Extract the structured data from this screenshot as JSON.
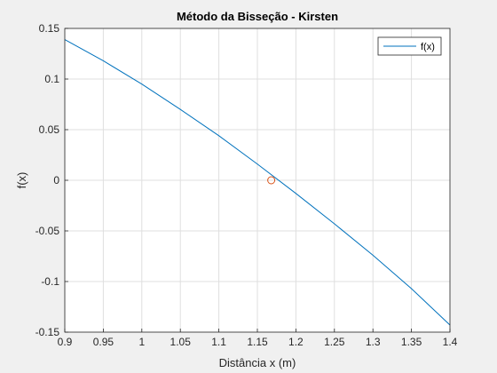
{
  "chart_data": {
    "type": "line",
    "title": "Método da Bisseção - Kirsten",
    "xlabel": "Distância x (m)",
    "ylabel": "f(x)",
    "xlim": [
      0.9,
      1.4
    ],
    "ylim": [
      -0.15,
      0.15
    ],
    "xticks": [
      "0.9",
      "0.95",
      "1",
      "1.05",
      "1.1",
      "1.15",
      "1.2",
      "1.25",
      "1.3",
      "1.35",
      "1.4"
    ],
    "yticks": [
      "-0.15",
      "-0.1",
      "-0.05",
      "0",
      "0.05",
      "0.1",
      "0.15"
    ],
    "grid": true,
    "legend_position": "top-right",
    "series": [
      {
        "name": "f(x)",
        "color": "#0072bd",
        "x": [
          0.9,
          0.95,
          1.0,
          1.05,
          1.1,
          1.15,
          1.2,
          1.25,
          1.3,
          1.35,
          1.4
        ],
        "y": [
          0.139,
          0.118,
          0.095,
          0.07,
          0.044,
          0.016,
          -0.013,
          -0.043,
          -0.074,
          -0.107,
          -0.143
        ]
      }
    ],
    "markers": [
      {
        "x": 1.168,
        "y": 0.0,
        "shape": "circle",
        "color": "#d95319"
      }
    ]
  }
}
